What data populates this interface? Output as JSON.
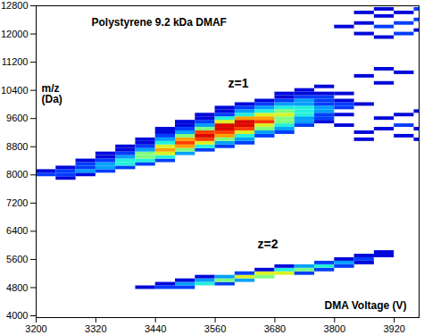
{
  "chart_data": {
    "type": "heatmap",
    "title": "Polystyrene 9.2 kDa DMAF",
    "x_label": "DMA Voltage (V)",
    "y_label": [
      "m/z",
      "(Da)"
    ],
    "annotations": [
      "z=1",
      "z=2"
    ],
    "xlim": [
      3200,
      3970
    ],
    "xticks": [
      3200,
      3320,
      3440,
      3560,
      3680,
      3800,
      3920
    ],
    "ylim": [
      3950,
      12800
    ],
    "yticks": [
      4000,
      4800,
      5600,
      6400,
      7200,
      8000,
      8800,
      9600,
      10400,
      11200,
      12000,
      12800
    ],
    "x_bin": 40,
    "y_bin": 100,
    "intensity_range": [
      0,
      10
    ],
    "cells": [
      [
        3200,
        8000,
        2
      ],
      [
        3200,
        8100,
        1
      ],
      [
        3240,
        7900,
        1
      ],
      [
        3240,
        8000,
        2
      ],
      [
        3240,
        8100,
        2
      ],
      [
        3240,
        8200,
        1
      ],
      [
        3280,
        8000,
        1
      ],
      [
        3280,
        8100,
        3
      ],
      [
        3280,
        8200,
        2
      ],
      [
        3280,
        8300,
        2
      ],
      [
        3280,
        8400,
        1
      ],
      [
        3320,
        8100,
        2
      ],
      [
        3320,
        8200,
        3
      ],
      [
        3320,
        8300,
        3
      ],
      [
        3320,
        8400,
        2
      ],
      [
        3320,
        8500,
        1
      ],
      [
        3320,
        8600,
        1
      ],
      [
        3360,
        8200,
        2
      ],
      [
        3360,
        8300,
        4
      ],
      [
        3360,
        8400,
        4
      ],
      [
        3360,
        8500,
        3
      ],
      [
        3360,
        8600,
        2
      ],
      [
        3360,
        8700,
        1
      ],
      [
        3360,
        8800,
        1
      ],
      [
        3400,
        8300,
        2
      ],
      [
        3400,
        8400,
        4
      ],
      [
        3400,
        8500,
        5
      ],
      [
        3400,
        8600,
        5
      ],
      [
        3400,
        8700,
        3
      ],
      [
        3400,
        8800,
        2
      ],
      [
        3400,
        8900,
        1
      ],
      [
        3400,
        9000,
        1
      ],
      [
        3440,
        8400,
        2
      ],
      [
        3440,
        8500,
        4
      ],
      [
        3440,
        8600,
        6
      ],
      [
        3440,
        8700,
        7
      ],
      [
        3440,
        8800,
        6
      ],
      [
        3440,
        8900,
        4
      ],
      [
        3440,
        9000,
        3
      ],
      [
        3440,
        9100,
        2
      ],
      [
        3440,
        9200,
        1
      ],
      [
        3440,
        9300,
        1
      ],
      [
        3480,
        8600,
        3
      ],
      [
        3480,
        8700,
        5
      ],
      [
        3480,
        8800,
        7
      ],
      [
        3480,
        8900,
        8
      ],
      [
        3480,
        9000,
        7
      ],
      [
        3480,
        9100,
        5
      ],
      [
        3480,
        9200,
        3
      ],
      [
        3480,
        9300,
        2
      ],
      [
        3480,
        9400,
        1
      ],
      [
        3480,
        9500,
        1
      ],
      [
        3520,
        8700,
        2
      ],
      [
        3520,
        8800,
        4
      ],
      [
        3520,
        8900,
        6
      ],
      [
        3520,
        9000,
        8
      ],
      [
        3520,
        9100,
        9
      ],
      [
        3520,
        9200,
        8
      ],
      [
        3520,
        9300,
        5
      ],
      [
        3520,
        9400,
        3
      ],
      [
        3520,
        9500,
        2
      ],
      [
        3520,
        9600,
        1
      ],
      [
        3520,
        9700,
        1
      ],
      [
        3560,
        8800,
        2
      ],
      [
        3560,
        8900,
        3
      ],
      [
        3560,
        9000,
        5
      ],
      [
        3560,
        9100,
        7
      ],
      [
        3560,
        9200,
        8
      ],
      [
        3560,
        9300,
        9
      ],
      [
        3560,
        9400,
        9
      ],
      [
        3560,
        9500,
        6
      ],
      [
        3560,
        9600,
        4
      ],
      [
        3560,
        9700,
        2
      ],
      [
        3560,
        9800,
        1
      ],
      [
        3560,
        9900,
        1
      ],
      [
        3600,
        8900,
        2
      ],
      [
        3600,
        9000,
        3
      ],
      [
        3600,
        9100,
        4
      ],
      [
        3600,
        9200,
        6
      ],
      [
        3600,
        9300,
        8
      ],
      [
        3600,
        9400,
        9
      ],
      [
        3600,
        9500,
        9
      ],
      [
        3600,
        9600,
        7
      ],
      [
        3600,
        9700,
        4
      ],
      [
        3600,
        9800,
        3
      ],
      [
        3600,
        9900,
        2
      ],
      [
        3600,
        10000,
        1
      ],
      [
        3640,
        9100,
        2
      ],
      [
        3640,
        9200,
        3
      ],
      [
        3640,
        9300,
        5
      ],
      [
        3640,
        9400,
        6
      ],
      [
        3640,
        9500,
        8
      ],
      [
        3640,
        9600,
        7
      ],
      [
        3640,
        9700,
        6
      ],
      [
        3640,
        9800,
        4
      ],
      [
        3640,
        9900,
        3
      ],
      [
        3640,
        10000,
        2
      ],
      [
        3640,
        10100,
        1
      ],
      [
        3680,
        9200,
        2
      ],
      [
        3680,
        9300,
        3
      ],
      [
        3680,
        9400,
        4
      ],
      [
        3680,
        9500,
        5
      ],
      [
        3680,
        9600,
        5
      ],
      [
        3680,
        9700,
        6
      ],
      [
        3680,
        9800,
        5
      ],
      [
        3680,
        9900,
        4
      ],
      [
        3680,
        10000,
        3
      ],
      [
        3680,
        10100,
        2
      ],
      [
        3680,
        10200,
        1
      ],
      [
        3680,
        10300,
        1
      ],
      [
        3720,
        9400,
        2
      ],
      [
        3720,
        9500,
        3
      ],
      [
        3720,
        9600,
        3
      ],
      [
        3720,
        9700,
        4
      ],
      [
        3720,
        9800,
        4
      ],
      [
        3720,
        9900,
        4
      ],
      [
        3720,
        10000,
        3
      ],
      [
        3720,
        10100,
        3
      ],
      [
        3720,
        10200,
        2
      ],
      [
        3720,
        10300,
        1
      ],
      [
        3720,
        10400,
        1
      ],
      [
        3760,
        9500,
        1
      ],
      [
        3760,
        9600,
        2
      ],
      [
        3760,
        9700,
        2
      ],
      [
        3760,
        9800,
        3
      ],
      [
        3760,
        9900,
        3
      ],
      [
        3760,
        10000,
        2
      ],
      [
        3760,
        10100,
        2
      ],
      [
        3760,
        10200,
        2
      ],
      [
        3760,
        10300,
        1
      ],
      [
        3760,
        10500,
        1
      ],
      [
        3800,
        9400,
        1
      ],
      [
        3800,
        9700,
        1
      ],
      [
        3800,
        9900,
        2
      ],
      [
        3800,
        10000,
        2
      ],
      [
        3800,
        10100,
        1
      ],
      [
        3800,
        10300,
        1
      ],
      [
        3800,
        12200,
        1
      ],
      [
        3840,
        9000,
        1
      ],
      [
        3840,
        9200,
        1
      ],
      [
        3840,
        10000,
        1
      ],
      [
        3840,
        10800,
        1
      ],
      [
        3840,
        12000,
        1
      ],
      [
        3840,
        12300,
        1
      ],
      [
        3840,
        12600,
        1
      ],
      [
        3880,
        9300,
        1
      ],
      [
        3880,
        9600,
        1
      ],
      [
        3880,
        10600,
        1
      ],
      [
        3880,
        11000,
        1
      ],
      [
        3880,
        11900,
        1
      ],
      [
        3880,
        12200,
        2
      ],
      [
        3880,
        12500,
        1
      ],
      [
        3880,
        12700,
        1
      ],
      [
        3920,
        9100,
        1
      ],
      [
        3920,
        9400,
        2
      ],
      [
        3920,
        9700,
        1
      ],
      [
        3920,
        10900,
        1
      ],
      [
        3920,
        12000,
        2
      ],
      [
        3920,
        12300,
        2
      ],
      [
        3920,
        12600,
        1
      ],
      [
        3960,
        9000,
        1
      ],
      [
        3960,
        9300,
        1
      ],
      [
        3960,
        9800,
        1
      ],
      [
        3960,
        12100,
        1
      ],
      [
        3960,
        12400,
        2
      ],
      [
        3960,
        12700,
        2
      ],
      [
        3400,
        4800,
        1
      ],
      [
        3440,
        4800,
        2
      ],
      [
        3440,
        4900,
        1
      ],
      [
        3480,
        4800,
        2
      ],
      [
        3480,
        4900,
        3
      ],
      [
        3480,
        5000,
        1
      ],
      [
        3520,
        4900,
        4
      ],
      [
        3520,
        5000,
        3
      ],
      [
        3520,
        5100,
        1
      ],
      [
        3560,
        4900,
        2
      ],
      [
        3560,
        5000,
        5
      ],
      [
        3560,
        5100,
        3
      ],
      [
        3600,
        5000,
        3
      ],
      [
        3600,
        5100,
        6
      ],
      [
        3600,
        5200,
        2
      ],
      [
        3640,
        5100,
        5
      ],
      [
        3640,
        5200,
        6
      ],
      [
        3640,
        5300,
        1
      ],
      [
        3680,
        5200,
        6
      ],
      [
        3680,
        5300,
        4
      ],
      [
        3680,
        5400,
        1
      ],
      [
        3720,
        5200,
        2
      ],
      [
        3720,
        5300,
        5
      ],
      [
        3720,
        5400,
        3
      ],
      [
        3760,
        5300,
        2
      ],
      [
        3760,
        5400,
        4
      ],
      [
        3760,
        5500,
        2
      ],
      [
        3800,
        5400,
        2
      ],
      [
        3800,
        5500,
        3
      ],
      [
        3800,
        5600,
        1
      ],
      [
        3840,
        5500,
        1
      ],
      [
        3840,
        5600,
        2
      ],
      [
        3840,
        5700,
        1
      ],
      [
        3880,
        5700,
        1
      ],
      [
        3880,
        5800,
        1
      ]
    ]
  }
}
